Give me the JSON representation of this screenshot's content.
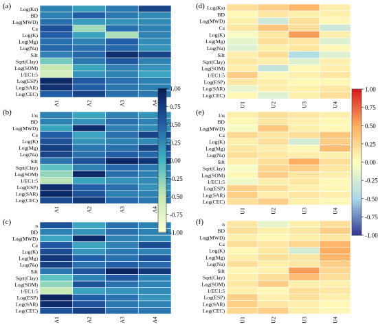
{
  "chart_data": [
    {
      "type": "heatmap",
      "panel_label": "(a)",
      "rows": [
        "Log(Ks)",
        "BD",
        "Log(MWD)",
        "Ca",
        "Log(K)",
        "Log(Mg)",
        "Log(Na)",
        "Silt",
        "Sqrt(Clay)",
        "Log(SOM)",
        "1/EC1:5",
        "Log(ESP)",
        "Log(SAR)",
        "Log(CEC)"
      ],
      "columns": [
        "A1",
        "A2",
        "A3",
        "A4"
      ],
      "values": [
        [
          0.3,
          0.15,
          0.35,
          0.7
        ],
        [
          0.3,
          0.5,
          0.35,
          0.25
        ],
        [
          0.4,
          0.15,
          0.2,
          0.25
        ],
        [
          0.6,
          -0.35,
          0.4,
          0.3
        ],
        [
          0.5,
          0.1,
          -0.4,
          0.3
        ],
        [
          0.4,
          0.3,
          0.5,
          0.25
        ],
        [
          0.45,
          0.4,
          0.45,
          0.2
        ],
        [
          0.3,
          0.45,
          0.85,
          0.7
        ],
        [
          -0.2,
          0.35,
          0.55,
          0.3
        ],
        [
          -0.5,
          0.1,
          0.3,
          0.2
        ],
        [
          -0.6,
          0.2,
          0.3,
          0.1
        ],
        [
          0.9,
          0.55,
          0.4,
          0.3
        ],
        [
          0.85,
          0.5,
          0.35,
          0.3
        ],
        [
          0.5,
          0.7,
          0.4,
          0.35
        ]
      ]
    },
    {
      "type": "heatmap",
      "panel_label": "(b)",
      "rows": [
        "1/α",
        "BD",
        "Log(MWD)",
        "Ca",
        "Log(K)",
        "Log(Mg)",
        "Log(Na)",
        "Silt",
        "Sqrt(Clay)",
        "Log(SOM)",
        "1/EC1:5",
        "Log(ESP)",
        "Log(SAR)",
        "Log(CEC)"
      ],
      "columns": [
        "A1",
        "A2",
        "A3",
        "A4"
      ],
      "values": [
        [
          0.3,
          0.1,
          0.3,
          0.2
        ],
        [
          0.3,
          0.2,
          0.4,
          0.3
        ],
        [
          0.1,
          0.85,
          0.3,
          0.25
        ],
        [
          0.5,
          0.1,
          0.4,
          0.7
        ],
        [
          0.6,
          0.2,
          0.3,
          0.25
        ],
        [
          0.75,
          0.35,
          0.4,
          0.7
        ],
        [
          0.7,
          0.4,
          0.5,
          0.45
        ],
        [
          0.35,
          0.6,
          0.9,
          0.8
        ],
        [
          -0.1,
          0.3,
          0.45,
          0.35
        ],
        [
          -0.3,
          0.9,
          0.4,
          0.3
        ],
        [
          -0.45,
          0.1,
          0.2,
          0.25
        ],
        [
          0.85,
          0.5,
          0.4,
          0.2
        ],
        [
          0.9,
          0.6,
          0.3,
          0.3
        ],
        [
          0.65,
          0.8,
          0.45,
          0.35
        ]
      ]
    },
    {
      "type": "heatmap",
      "panel_label": "(c)",
      "rows": [
        "n",
        "BD",
        "Log(MWD)",
        "Ca",
        "Log(K)",
        "Log(Mg)",
        "Log(Na)",
        "Silt",
        "Sqrt(Clay)",
        "Log(SOM)",
        "1/EC1:5",
        "Log(ESP)",
        "Log(SAR)",
        "Log(CEC)"
      ],
      "columns": [
        "A1",
        "A2",
        "A3",
        "A4"
      ],
      "values": [
        [
          0.6,
          0.1,
          0.4,
          0.3
        ],
        [
          0.3,
          0.2,
          0.4,
          0.3
        ],
        [
          0.1,
          0.9,
          0.3,
          0.25
        ],
        [
          0.55,
          0.1,
          0.3,
          0.65
        ],
        [
          0.65,
          0.2,
          0.35,
          0.3
        ],
        [
          0.8,
          0.5,
          0.4,
          0.6
        ],
        [
          0.75,
          0.4,
          0.5,
          0.45
        ],
        [
          0.35,
          0.6,
          0.95,
          0.8
        ],
        [
          -0.1,
          0.3,
          0.55,
          0.3
        ],
        [
          -0.3,
          0.6,
          0.4,
          0.3
        ],
        [
          -0.5,
          0.1,
          0.2,
          0.25
        ],
        [
          0.95,
          0.5,
          0.4,
          0.2
        ],
        [
          0.9,
          0.6,
          0.35,
          0.3
        ],
        [
          0.6,
          0.75,
          0.4,
          0.35
        ]
      ]
    },
    {
      "type": "heatmap",
      "panel_label": "(d)",
      "rows": [
        "Log(Ks)",
        "BD",
        "Log(MWD)",
        "Ca",
        "Log(K)",
        "Log(Mg)",
        "Log(Na)",
        "Silt",
        "Sqrt(Clay)",
        "Log(SOM)",
        "1/EC1:5",
        "Log(ESP)",
        "Log(SAR)",
        "Log(CEC)"
      ],
      "columns": [
        "U1",
        "U2",
        "U3",
        "U4"
      ],
      "values": [
        [
          0.2,
          0.3,
          0.45,
          0.1
        ],
        [
          0.05,
          0.15,
          0.1,
          0.1
        ],
        [
          0.1,
          -0.3,
          0.2,
          0.05
        ],
        [
          0.15,
          0.35,
          0.2,
          -0.3
        ],
        [
          -0.05,
          0.15,
          0.55,
          0.1
        ],
        [
          -0.15,
          0.2,
          0.15,
          -0.2
        ],
        [
          -0.2,
          0.1,
          0.15,
          0.05
        ],
        [
          0.1,
          0.2,
          -0.45,
          -0.2
        ],
        [
          0.15,
          0.1,
          -0.2,
          0.1
        ],
        [
          0.1,
          -0.35,
          0.05,
          0.1
        ],
        [
          0.3,
          0.05,
          0.1,
          0.15
        ],
        [
          0.15,
          0.1,
          0.05,
          0.05
        ],
        [
          -0.15,
          0.1,
          0.1,
          0.15
        ],
        [
          0.05,
          -0.2,
          0.1,
          0.2
        ]
      ]
    },
    {
      "type": "heatmap",
      "panel_label": "(e)",
      "rows": [
        "1/α",
        "BD",
        "Log(MWD)",
        "Ca",
        "Log(K)",
        "Log(Mg)",
        "Log(Na)",
        "Silt",
        "Sqrt(Clay)",
        "Log(SOM)",
        "1/EC1:5",
        "Log(ESP)",
        "Log(SAR)",
        "Log(CEC)"
      ],
      "columns": [
        "U1",
        "U2",
        "U3",
        "U4"
      ],
      "values": [
        [
          0.1,
          0.2,
          0.15,
          0.1
        ],
        [
          0.05,
          0.15,
          0.1,
          0.05
        ],
        [
          -0.05,
          0.35,
          0.1,
          0.05
        ],
        [
          0.25,
          0.15,
          0.2,
          0.35
        ],
        [
          0.1,
          0.2,
          -0.25,
          0.3
        ],
        [
          0.15,
          0.1,
          0.05,
          0.4
        ],
        [
          0.2,
          0.15,
          0.1,
          0.1
        ],
        [
          0.1,
          0.2,
          0.5,
          0.2
        ],
        [
          -0.05,
          0.25,
          0.3,
          0.15
        ],
        [
          0.05,
          0.3,
          0.15,
          0.1
        ],
        [
          -0.1,
          0.1,
          0.15,
          0.05
        ],
        [
          0.3,
          0.2,
          0.1,
          0.05
        ],
        [
          0.3,
          0.1,
          0.15,
          0.1
        ],
        [
          0.2,
          0.3,
          0.1,
          0.05
        ]
      ]
    },
    {
      "type": "heatmap",
      "panel_label": "(f)",
      "rows": [
        "n",
        "BD",
        "Log(MWD)",
        "Ca",
        "Log(K)",
        "Log(Mg)",
        "Log(Na)",
        "Silt",
        "Sqrt(Clay)",
        "Log(SOM)",
        "1/EC1:5",
        "Log(ESP)",
        "Log(SAR)",
        "Log(CEC)"
      ],
      "columns": [
        "U1",
        "U2",
        "U3",
        "U4"
      ],
      "values": [
        [
          0.15,
          -0.15,
          0.1,
          0.2
        ],
        [
          0.2,
          0.1,
          0.15,
          0.3
        ],
        [
          0.1,
          0.05,
          0.1,
          0.15
        ],
        [
          0.2,
          0.15,
          0.25,
          0.45
        ],
        [
          0.05,
          0.15,
          -0.25,
          0.5
        ],
        [
          0.1,
          0.2,
          0.15,
          0.45
        ],
        [
          0.2,
          0.1,
          0.15,
          0.3
        ],
        [
          0.05,
          0.1,
          0.55,
          0.25
        ],
        [
          0.1,
          0.2,
          0.4,
          0.2
        ],
        [
          0.15,
          0.3,
          0.1,
          0.1
        ],
        [
          0.1,
          0.05,
          0.2,
          0.15
        ],
        [
          0.3,
          0.1,
          0.2,
          0.1
        ],
        [
          0.3,
          0.15,
          0.1,
          0.05
        ],
        [
          0.25,
          0.3,
          0.1,
          0.05
        ]
      ]
    }
  ],
  "colorbars": [
    {
      "name": "blue-scale",
      "range": [
        -1.0,
        1.0
      ],
      "ticks": [
        "1.00",
        "0.75",
        "0.50",
        "0.25",
        "0.00",
        "-0.25",
        "-0.50",
        "-0.75",
        "-1.00"
      ],
      "colors": [
        "#ffffd9",
        "#c7e9b4",
        "#41b6c4",
        "#225ea8",
        "#081d58"
      ]
    },
    {
      "name": "red-blue-scale",
      "range": [
        -1.0,
        1.0
      ],
      "ticks": [
        "1.00",
        "0.75",
        "0.50",
        "0.25",
        "0.00",
        "-0.25",
        "-0.50",
        "-0.75",
        "-1.00"
      ],
      "colors": [
        "#313695",
        "#abd9e9",
        "#ffffbf",
        "#fdae61",
        "#d7191c"
      ]
    }
  ]
}
